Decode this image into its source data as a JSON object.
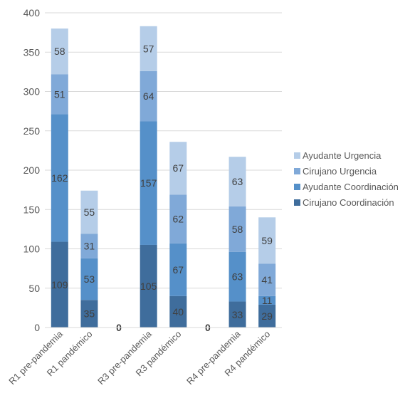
{
  "chart_data": {
    "type": "bar",
    "stacked": true,
    "categories": [
      "R1 pre-pandemia",
      "R1 pandémico",
      "",
      "R3 pre-pandemia",
      "R3 pandémico",
      "",
      "R4 pre-pandemia",
      "R4 pandémico"
    ],
    "zero_labels": [
      "",
      "",
      "0",
      "",
      "",
      "0",
      "",
      ""
    ],
    "series": [
      {
        "name": "Cirujano Coordinación",
        "color": "#3f6d9c",
        "values": [
          109,
          35,
          0,
          105,
          40,
          0,
          33,
          29
        ]
      },
      {
        "name": "Ayudante Coordinación",
        "color": "#5590c9",
        "values": [
          162,
          53,
          0,
          157,
          67,
          0,
          63,
          11
        ]
      },
      {
        "name": "Cirujano Urgencia",
        "color": "#80a9d8",
        "values": [
          51,
          31,
          0,
          64,
          62,
          0,
          58,
          41
        ]
      },
      {
        "name": "Ayudante Urgencia",
        "color": "#b5cde8",
        "values": [
          58,
          55,
          0,
          57,
          67,
          0,
          63,
          59
        ]
      }
    ],
    "yticks": [
      "0",
      "50",
      "100",
      "150",
      "200",
      "250",
      "300",
      "350",
      "400"
    ],
    "ylim": [
      0,
      400
    ],
    "grid": true,
    "legend_position": "right",
    "title": "",
    "xlabel": "",
    "ylabel": ""
  }
}
